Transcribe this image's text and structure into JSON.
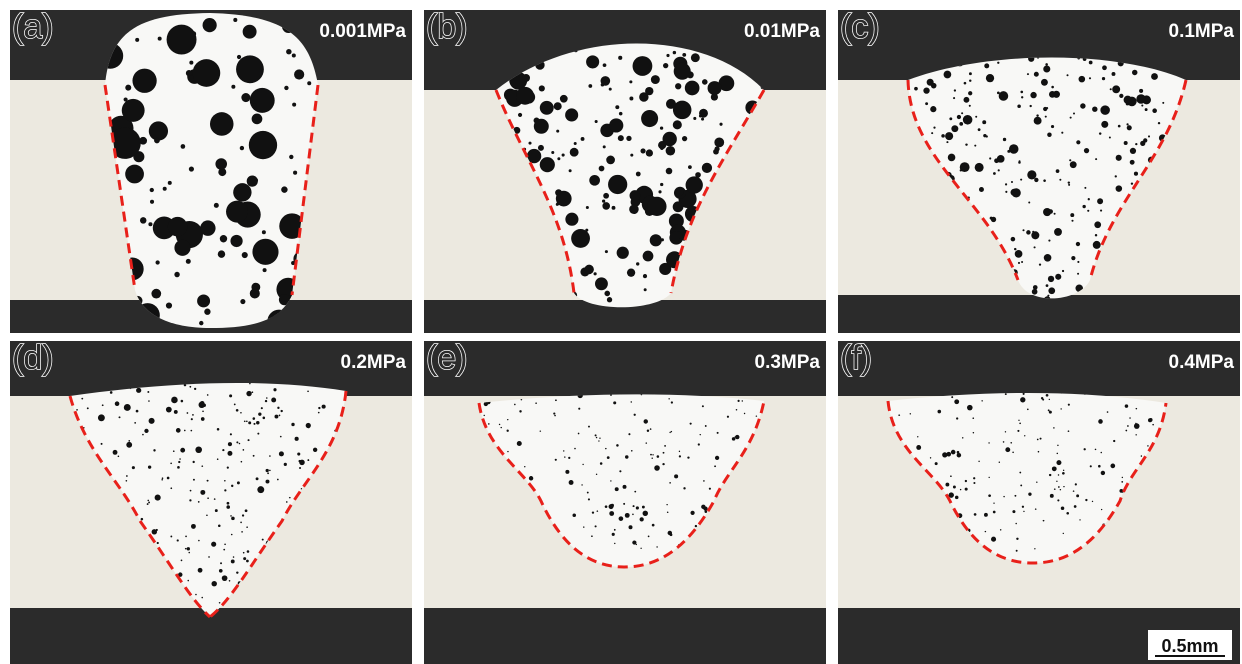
{
  "panels": [
    {
      "label": "(a)",
      "pressure": "0.001MPa"
    },
    {
      "label": "(b)",
      "pressure": "0.01MPa"
    },
    {
      "label": "(c)",
      "pressure": "0.1MPa"
    },
    {
      "label": "(d)",
      "pressure": "0.2MPa"
    },
    {
      "label": "(e)",
      "pressure": "0.3MPa"
    },
    {
      "label": "(f)",
      "pressure": "0.4MPa"
    }
  ],
  "scale_bar": "0.5mm"
}
